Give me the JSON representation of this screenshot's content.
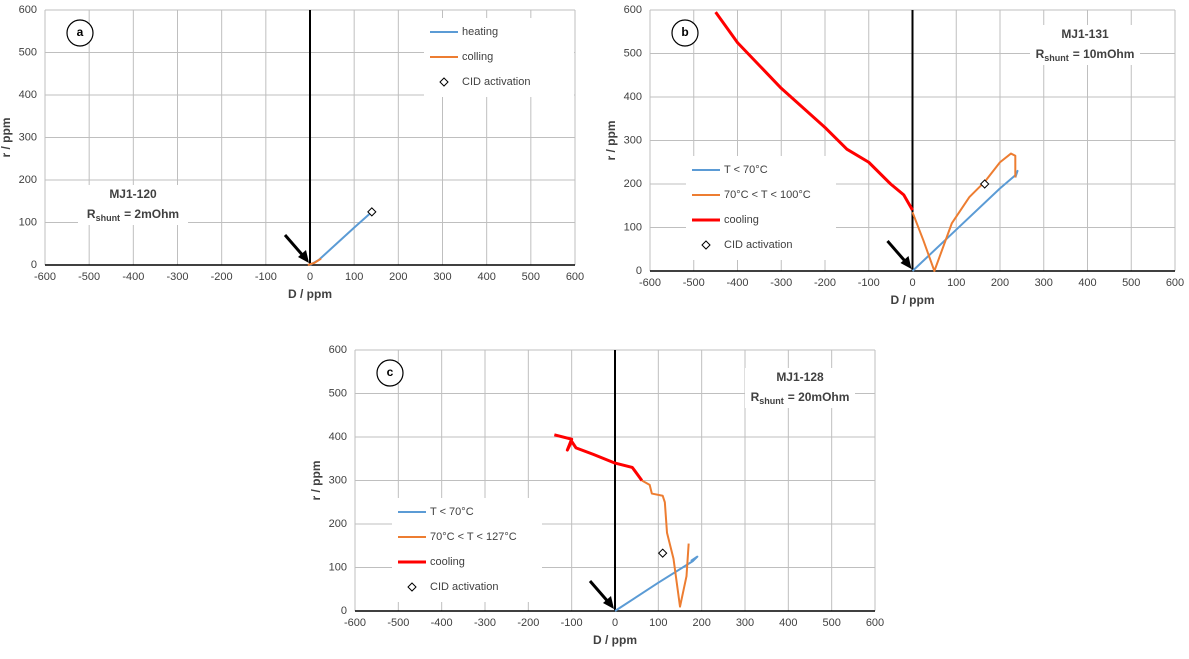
{
  "chart_data": [
    {
      "type": "line",
      "panel": "a",
      "annotation": {
        "sample": "MJ1-120",
        "r_main": "R",
        "r_sub": "shunt",
        "r_rest": "= 2mOhm"
      },
      "x_label": "D / ppm",
      "y_label": "r / ppm",
      "xlim": [
        -600,
        600
      ],
      "ylim": [
        0,
        600
      ],
      "xticks": [
        -600,
        -500,
        -400,
        -300,
        -200,
        -100,
        0,
        100,
        200,
        300,
        400,
        500,
        600
      ],
      "yticks": [
        0,
        100,
        200,
        300,
        400,
        500,
        600
      ],
      "grid": true,
      "legend": "upper right",
      "series": [
        {
          "name": "heating",
          "color": "#5b9bd5",
          "linewidth": 2,
          "x": [
            0,
            20,
            60,
            100,
            140
          ],
          "values": [
            0,
            12,
            50,
            88,
            125
          ]
        },
        {
          "name": "colling",
          "color": "#ed7d31",
          "linewidth": 2,
          "x": [
            -5,
            10,
            25
          ],
          "values": [
            0,
            5,
            15
          ]
        },
        {
          "name": "CID activation",
          "color": "#000000",
          "marker": "diamond",
          "x": [
            140
          ],
          "values": [
            125
          ]
        }
      ]
    },
    {
      "type": "line",
      "panel": "b",
      "annotation": {
        "sample": "MJ1-131",
        "r_main": "R",
        "r_sub": "shunt",
        "r_rest": "= 10mOhm"
      },
      "x_label": "D / ppm",
      "y_label": "r / ppm",
      "xlim": [
        -600,
        600
      ],
      "ylim": [
        0,
        600
      ],
      "xticks": [
        -600,
        -500,
        -400,
        -300,
        -200,
        -100,
        0,
        100,
        200,
        300,
        400,
        500,
        600
      ],
      "yticks": [
        0,
        100,
        200,
        300,
        400,
        500,
        600
      ],
      "grid": true,
      "legend": "lower left",
      "series": [
        {
          "name": "T < 70°C",
          "color": "#5b9bd5",
          "linewidth": 2,
          "x": [
            0,
            100,
            200,
            235,
            240,
            235
          ],
          "values": [
            0,
            95,
            190,
            220,
            230,
            215
          ]
        },
        {
          "name": "70°C < T < 100°C",
          "color": "#ed7d31",
          "linewidth": 2,
          "x": [
            235,
            235,
            225,
            200,
            165,
            130,
            90,
            50,
            25,
            0
          ],
          "values": [
            215,
            265,
            270,
            250,
            205,
            170,
            110,
            0,
            70,
            135
          ]
        },
        {
          "name": "cooling",
          "color": "#ff0000",
          "linewidth": 3,
          "x": [
            0,
            -20,
            -50,
            -100,
            -150,
            -200,
            -300,
            -400,
            -450
          ],
          "values": [
            140,
            175,
            200,
            250,
            280,
            330,
            420,
            525,
            595
          ]
        },
        {
          "name": "CID activation",
          "color": "#000000",
          "marker": "diamond",
          "x": [
            165
          ],
          "values": [
            200
          ]
        }
      ]
    },
    {
      "type": "line",
      "panel": "c",
      "annotation": {
        "sample": "MJ1-128",
        "r_main": "R",
        "r_sub": "shunt",
        "r_rest": "= 20mOhm"
      },
      "x_label": "D / ppm",
      "y_label": "r / ppm",
      "xlim": [
        -600,
        600
      ],
      "ylim": [
        0,
        600
      ],
      "xticks": [
        -600,
        -500,
        -400,
        -300,
        -200,
        -100,
        0,
        100,
        200,
        300,
        400,
        500,
        600
      ],
      "yticks": [
        0,
        100,
        200,
        300,
        400,
        500,
        600
      ],
      "grid": true,
      "legend": "lower left",
      "series": [
        {
          "name": "T < 70°C",
          "color": "#5b9bd5",
          "linewidth": 2,
          "x": [
            0,
            100,
            180,
            190,
            175
          ],
          "values": [
            0,
            65,
            115,
            125,
            115
          ]
        },
        {
          "name": "70°C < T < 127°C",
          "color": "#ed7d31",
          "linewidth": 2,
          "x": [
            170,
            165,
            150,
            135,
            120,
            115,
            110,
            85,
            80,
            62
          ],
          "values": [
            155,
            80,
            10,
            120,
            180,
            250,
            265,
            270,
            290,
            300
          ]
        },
        {
          "name": "cooling",
          "color": "#ff0000",
          "linewidth": 3,
          "x": [
            62,
            40,
            0,
            -50,
            -90,
            -100,
            -110,
            -100,
            -140
          ],
          "values": [
            300,
            330,
            340,
            360,
            375,
            390,
            370,
            395,
            405
          ]
        },
        {
          "name": "CID activation",
          "color": "#000000",
          "marker": "diamond",
          "x": [
            110
          ],
          "values": [
            133
          ]
        }
      ]
    }
  ]
}
